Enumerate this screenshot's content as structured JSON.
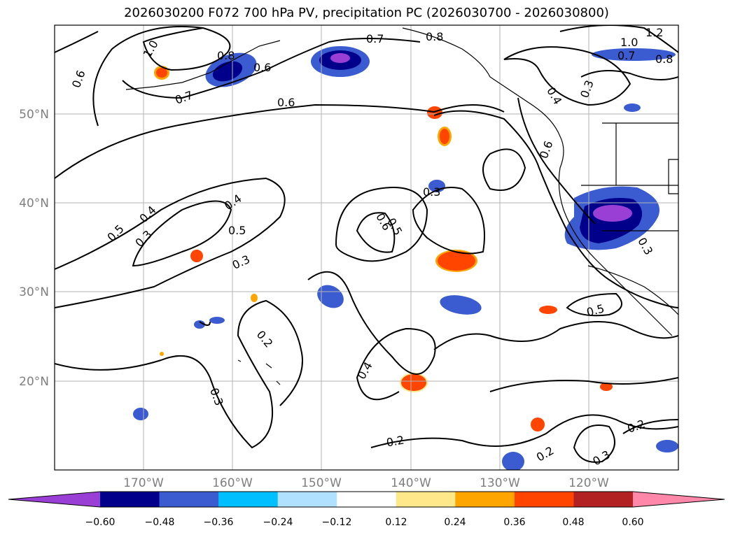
{
  "title": "2026030200 F072 700 hPa PV, precipitation PC (2026030700 - 2026030800)",
  "lat_labels": [
    "50°N",
    "40°N",
    "30°N",
    "20°N"
  ],
  "lon_labels": [
    "170°W",
    "160°W",
    "150°W",
    "140°W",
    "130°W",
    "120°W"
  ],
  "contour_labels": [
    "0.7",
    "0.6",
    "0.7",
    "1.0",
    "0.8",
    "0.6",
    "0.6",
    "0.8",
    "1.0",
    "0.7",
    "1.2",
    "0.8",
    "0.3",
    "0.4",
    "0.6",
    "0.5",
    "0.4",
    "0.3",
    "0.4",
    "0.5",
    "0.3",
    "0.3",
    "0.6",
    "0.5",
    "0.3",
    "0.2",
    "0.4",
    "0.5",
    "0.2",
    "0.3",
    "0.2",
    "0.3",
    "0.2"
  ],
  "colorbar": {
    "ticks": [
      "−0.60",
      "−0.48",
      "−0.36",
      "−0.24",
      "−0.12",
      "0.12",
      "0.24",
      "0.36",
      "0.48",
      "0.60"
    ],
    "colors": [
      "#9a3fd6",
      "#00008b",
      "#3b5cd0",
      "#00bfff",
      "#b0e2ff",
      "#ffffff",
      "#ffe88a",
      "#ffa500",
      "#ff4500",
      "#b22222",
      "#ff88aa"
    ]
  }
}
